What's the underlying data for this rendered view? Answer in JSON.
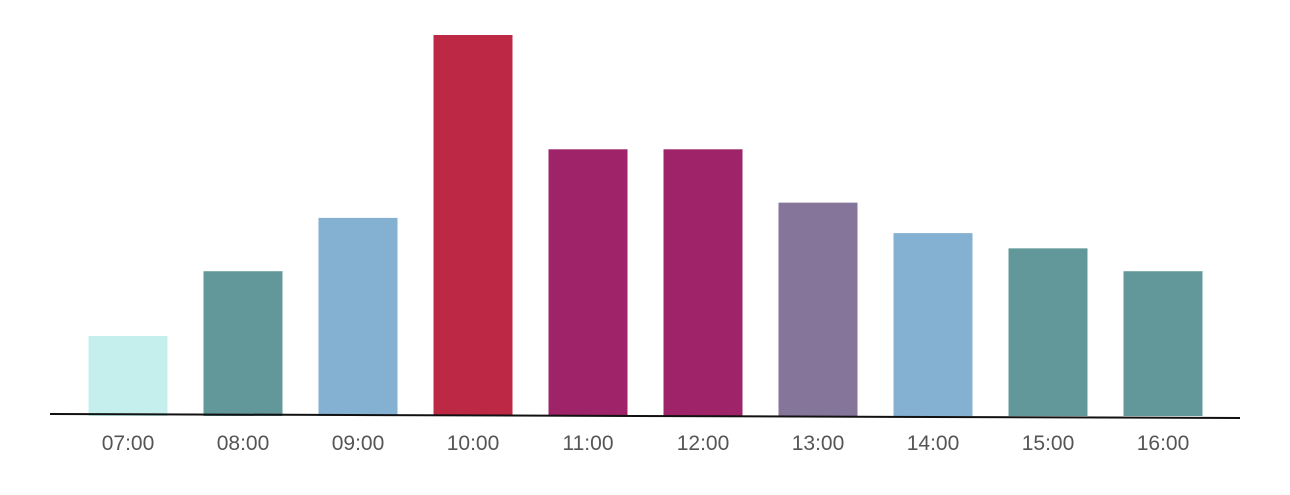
{
  "chart_data": {
    "type": "bar",
    "title": "",
    "xlabel": "",
    "ylabel": "",
    "categories": [
      "07:00",
      "08:00",
      "09:00",
      "10:00",
      "11:00",
      "12:00",
      "13:00",
      "14:00",
      "15:00",
      "16:00"
    ],
    "values": [
      21,
      38,
      52,
      100,
      70,
      70,
      56,
      48,
      44,
      38
    ],
    "colors": [
      "#c5efec",
      "#62989a",
      "#84b0d1",
      "#bd2845",
      "#9e2369",
      "#9e2369",
      "#85759b",
      "#84b0d1",
      "#62989a",
      "#62989a"
    ],
    "ylim": [
      0,
      100
    ],
    "grid": false,
    "y_axis_shown": false,
    "legend": "none"
  }
}
